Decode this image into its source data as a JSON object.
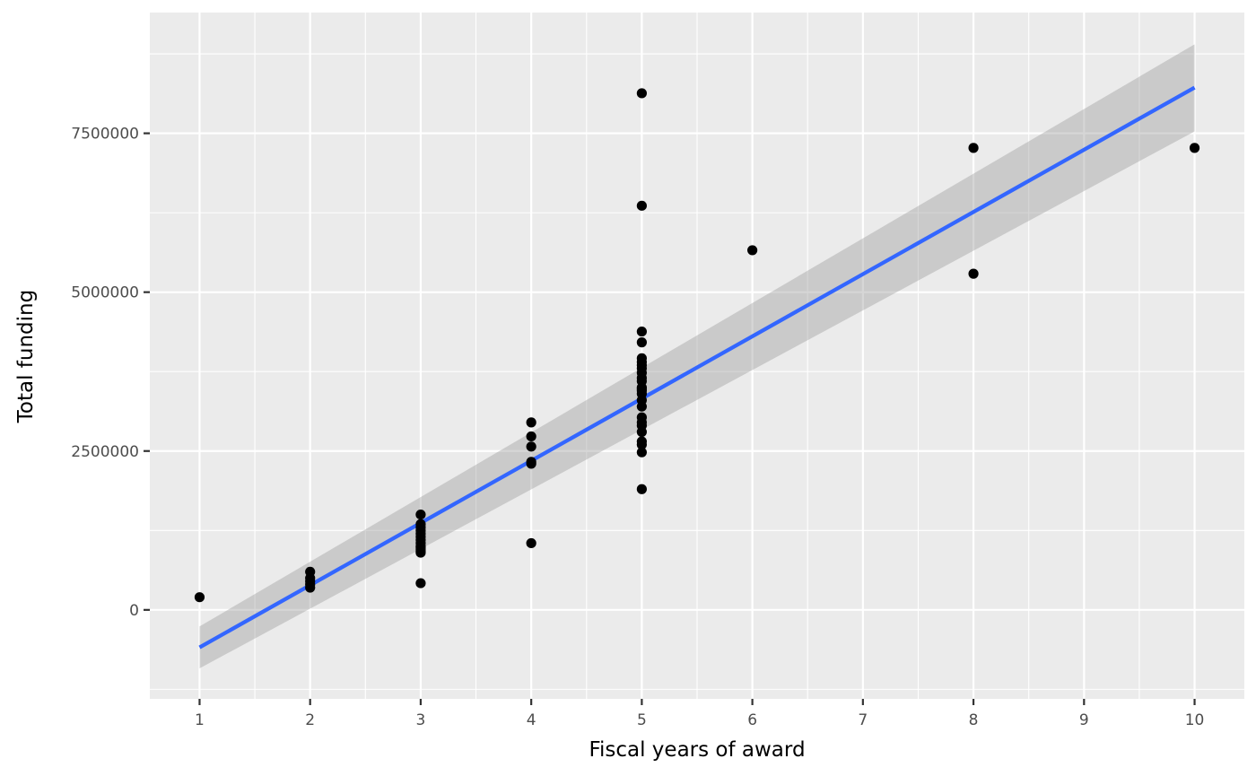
{
  "chart_data": {
    "type": "scatter",
    "xlabel": "Fiscal years of award",
    "ylabel": "Total funding",
    "xlim": [
      0.55,
      10.45
    ],
    "ylim": [
      -1400000,
      9400000
    ],
    "x_ticks": [
      1,
      2,
      3,
      4,
      5,
      6,
      7,
      8,
      9,
      10
    ],
    "x_minor_ticks": [
      1.5,
      2.5,
      3.5,
      4.5,
      5.5,
      6.5,
      7.5,
      8.5,
      9.5
    ],
    "y_ticks": [
      0,
      2500000,
      5000000,
      7500000
    ],
    "y_minor_ticks": [
      -1250000,
      1250000,
      3750000,
      6250000,
      8750000
    ],
    "grid": true,
    "legend": "none",
    "points": {
      "x": [
        1,
        2,
        2,
        2,
        2,
        2,
        3,
        3,
        3,
        3,
        3,
        3,
        3,
        3,
        3,
        3,
        3,
        3,
        3,
        3,
        4,
        4,
        4,
        4,
        4,
        4,
        5,
        5,
        5,
        5,
        5,
        5,
        5,
        5,
        5,
        5,
        5,
        5,
        5,
        5,
        5,
        5,
        5,
        5,
        5,
        5,
        5,
        5,
        5,
        5,
        5,
        6,
        8,
        8,
        10
      ],
      "y": [
        200000,
        600000,
        500000,
        450000,
        400000,
        350000,
        1500000,
        1350000,
        1300000,
        1250000,
        1200000,
        1150000,
        1100000,
        1050000,
        1000000,
        980000,
        950000,
        920000,
        900000,
        420000,
        2950000,
        2730000,
        2570000,
        2330000,
        2300000,
        1050000,
        8130000,
        6360000,
        4380000,
        4210000,
        3960000,
        3900000,
        3850000,
        3800000,
        3730000,
        3650000,
        3600000,
        3500000,
        3450000,
        3400000,
        3300000,
        3200000,
        3030000,
        2950000,
        2900000,
        2800000,
        2650000,
        2600000,
        2480000,
        1900000,
        3480000,
        5660000,
        5290000,
        7270000,
        7270000
      ],
      "color": "#000000"
    },
    "fit": {
      "x": [
        1,
        10
      ],
      "y": [
        -590000,
        8220000
      ],
      "ci_lower": [
        -920000,
        7530000
      ],
      "ci_upper": [
        -260000,
        8900000
      ],
      "line_color": "#3366ff",
      "band_color": "#999999"
    },
    "panel_background": "#ebebeb",
    "grid_color": "#ffffff"
  }
}
